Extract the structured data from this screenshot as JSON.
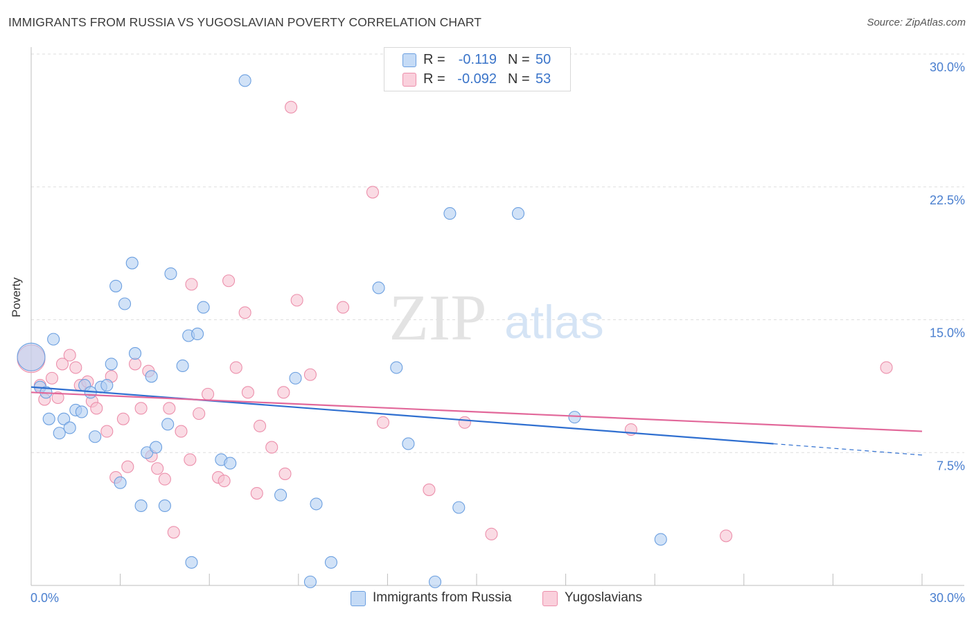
{
  "header": {
    "title": "IMMIGRANTS FROM RUSSIA VS YUGOSLAVIAN POVERTY CORRELATION CHART",
    "source": "Source: ZipAtlas.com"
  },
  "watermark": {
    "zip": "ZIP",
    "atlas": "atlas"
  },
  "legend_top": {
    "rows": [
      {
        "r_label": "R =",
        "r_value": "-0.119",
        "n_label": "N =",
        "n_value": "50",
        "color": "#a9c8ef"
      },
      {
        "r_label": "R =",
        "r_value": "-0.092",
        "n_label": "N =",
        "n_value": "53",
        "color": "#f7b8cb"
      }
    ]
  },
  "colors": {
    "blue_fill": "#b3cff2",
    "blue_stroke": "#6b9fe0",
    "blue_line": "#2f6fd0",
    "pink_fill": "#f7c3d2",
    "pink_stroke": "#ec8fab",
    "pink_line": "#e2689a",
    "axis_text": "#4a7fcf",
    "grid": "#dedede"
  },
  "chart_data": {
    "type": "scatter",
    "title": "IMMIGRANTS FROM RUSSIA VS YUGOSLAVIAN POVERTY CORRELATION CHART",
    "xlabel": "",
    "ylabel": "Poverty",
    "xlim": [
      0,
      30
    ],
    "ylim": [
      0,
      30
    ],
    "x_tick_labels": [
      "0.0%",
      "30.0%"
    ],
    "y_ticks": [
      7.5,
      15.0,
      22.5,
      30.0
    ],
    "y_tick_labels": [
      "7.5%",
      "15.0%",
      "22.5%",
      "30.0%"
    ],
    "grid": true,
    "legend_position": "bottom",
    "series": [
      {
        "name": "Immigrants from Russia",
        "color": "#b3cff2",
        "trend": {
          "x": [
            0.0,
            25.0
          ],
          "y": [
            11.2,
            8.0
          ],
          "dashed_to_x": 30.0
        },
        "points": [
          {
            "x": 0.0,
            "y": 12.9,
            "big": true
          },
          {
            "x": 0.3,
            "y": 11.2
          },
          {
            "x": 0.5,
            "y": 10.9
          },
          {
            "x": 0.6,
            "y": 9.4
          },
          {
            "x": 0.75,
            "y": 13.9
          },
          {
            "x": 0.95,
            "y": 8.6
          },
          {
            "x": 1.1,
            "y": 9.4
          },
          {
            "x": 1.3,
            "y": 8.9
          },
          {
            "x": 1.5,
            "y": 9.9
          },
          {
            "x": 1.7,
            "y": 9.8
          },
          {
            "x": 1.8,
            "y": 11.3
          },
          {
            "x": 2.0,
            "y": 10.9
          },
          {
            "x": 2.15,
            "y": 8.4
          },
          {
            "x": 2.35,
            "y": 11.2
          },
          {
            "x": 2.55,
            "y": 11.3
          },
          {
            "x": 2.7,
            "y": 12.5
          },
          {
            "x": 2.85,
            "y": 16.9
          },
          {
            "x": 3.0,
            "y": 5.8
          },
          {
            "x": 3.15,
            "y": 15.9
          },
          {
            "x": 3.4,
            "y": 18.2
          },
          {
            "x": 3.5,
            "y": 13.1
          },
          {
            "x": 3.7,
            "y": 4.5
          },
          {
            "x": 3.9,
            "y": 7.5
          },
          {
            "x": 4.05,
            "y": 11.8
          },
          {
            "x": 4.2,
            "y": 7.8
          },
          {
            "x": 4.5,
            "y": 4.5
          },
          {
            "x": 4.6,
            "y": 9.1
          },
          {
            "x": 4.7,
            "y": 17.6
          },
          {
            "x": 5.1,
            "y": 12.4
          },
          {
            "x": 5.3,
            "y": 14.1
          },
          {
            "x": 5.4,
            "y": 1.3
          },
          {
            "x": 5.6,
            "y": 14.2
          },
          {
            "x": 5.8,
            "y": 15.7
          },
          {
            "x": 6.4,
            "y": 7.1
          },
          {
            "x": 6.7,
            "y": 6.9
          },
          {
            "x": 7.2,
            "y": 28.5
          },
          {
            "x": 8.4,
            "y": 5.1
          },
          {
            "x": 8.9,
            "y": 11.7
          },
          {
            "x": 9.4,
            "y": 0.2
          },
          {
            "x": 9.6,
            "y": 4.6
          },
          {
            "x": 10.1,
            "y": 1.3
          },
          {
            "x": 11.7,
            "y": 16.8
          },
          {
            "x": 12.3,
            "y": 12.3
          },
          {
            "x": 12.7,
            "y": 8.0
          },
          {
            "x": 13.6,
            "y": 0.2
          },
          {
            "x": 14.1,
            "y": 21.0
          },
          {
            "x": 14.4,
            "y": 4.4
          },
          {
            "x": 16.4,
            "y": 21.0
          },
          {
            "x": 18.3,
            "y": 9.5
          },
          {
            "x": 21.2,
            "y": 2.6
          }
        ]
      },
      {
        "name": "Yugoslavians",
        "color": "#f7c3d2",
        "trend": {
          "x": [
            0.0,
            30.0
          ],
          "y": [
            10.9,
            8.7
          ]
        },
        "points": [
          {
            "x": 0.0,
            "y": 12.8,
            "big": true
          },
          {
            "x": 0.3,
            "y": 11.3
          },
          {
            "x": 0.45,
            "y": 10.5
          },
          {
            "x": 0.7,
            "y": 11.7
          },
          {
            "x": 0.9,
            "y": 10.6
          },
          {
            "x": 1.05,
            "y": 12.5
          },
          {
            "x": 1.3,
            "y": 13.0
          },
          {
            "x": 1.5,
            "y": 12.3
          },
          {
            "x": 1.65,
            "y": 11.3
          },
          {
            "x": 1.9,
            "y": 11.5
          },
          {
            "x": 2.05,
            "y": 10.4
          },
          {
            "x": 2.2,
            "y": 10.0
          },
          {
            "x": 2.55,
            "y": 8.7
          },
          {
            "x": 2.7,
            "y": 11.8
          },
          {
            "x": 2.85,
            "y": 6.1
          },
          {
            "x": 3.1,
            "y": 9.4
          },
          {
            "x": 3.25,
            "y": 6.7
          },
          {
            "x": 3.5,
            "y": 12.5
          },
          {
            "x": 3.7,
            "y": 10.0
          },
          {
            "x": 3.95,
            "y": 12.1
          },
          {
            "x": 4.05,
            "y": 7.3
          },
          {
            "x": 4.25,
            "y": 6.6
          },
          {
            "x": 4.5,
            "y": 6.0
          },
          {
            "x": 4.65,
            "y": 10.0
          },
          {
            "x": 4.8,
            "y": 3.0
          },
          {
            "x": 5.05,
            "y": 8.7
          },
          {
            "x": 5.35,
            "y": 7.1
          },
          {
            "x": 5.4,
            "y": 17.0
          },
          {
            "x": 5.65,
            "y": 9.7
          },
          {
            "x": 5.95,
            "y": 10.8
          },
          {
            "x": 6.3,
            "y": 6.1
          },
          {
            "x": 6.5,
            "y": 5.9
          },
          {
            "x": 6.65,
            "y": 17.2
          },
          {
            "x": 6.9,
            "y": 12.3
          },
          {
            "x": 7.2,
            "y": 15.4
          },
          {
            "x": 7.3,
            "y": 10.9
          },
          {
            "x": 7.6,
            "y": 5.2
          },
          {
            "x": 7.7,
            "y": 9.0
          },
          {
            "x": 8.1,
            "y": 7.8
          },
          {
            "x": 8.5,
            "y": 10.9
          },
          {
            "x": 8.55,
            "y": 6.3
          },
          {
            "x": 8.75,
            "y": 27.0
          },
          {
            "x": 8.95,
            "y": 16.1
          },
          {
            "x": 9.4,
            "y": 11.9
          },
          {
            "x": 10.5,
            "y": 15.7
          },
          {
            "x": 11.5,
            "y": 22.2
          },
          {
            "x": 11.85,
            "y": 9.2
          },
          {
            "x": 13.4,
            "y": 5.4
          },
          {
            "x": 14.6,
            "y": 9.2
          },
          {
            "x": 15.5,
            "y": 2.9
          },
          {
            "x": 20.2,
            "y": 8.8
          },
          {
            "x": 23.4,
            "y": 2.8
          },
          {
            "x": 28.8,
            "y": 12.3
          }
        ]
      }
    ]
  }
}
